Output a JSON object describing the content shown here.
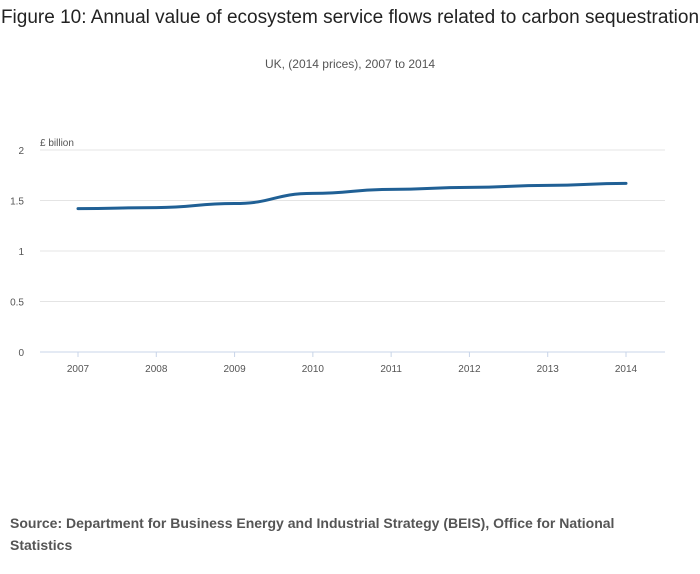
{
  "title": "Figure 10: Annual value of ecosystem service flows related to carbon sequestration",
  "subtitle": "UK, (2014 prices), 2007 to 2014",
  "source": "Source: Department for Business Energy and Industrial Strategy (BEIS), Office for National Statistics",
  "chart_data": {
    "type": "line",
    "title": "Figure 10: Annual value of ecosystem service flows related to carbon sequestration",
    "subtitle": "UK, (2014 prices), 2007 to 2014",
    "ylabel": "£ billion",
    "xlabel": "",
    "categories": [
      "2007",
      "2008",
      "2009",
      "2010",
      "2011",
      "2012",
      "2013",
      "2014"
    ],
    "values": [
      1.42,
      1.43,
      1.47,
      1.57,
      1.61,
      1.63,
      1.65,
      1.67
    ],
    "ylim": [
      0,
      2
    ],
    "yticks": [
      "0",
      "0.5",
      "1",
      "1.5",
      "2"
    ],
    "grid": true,
    "legend": "none",
    "line_color": "#206095"
  }
}
